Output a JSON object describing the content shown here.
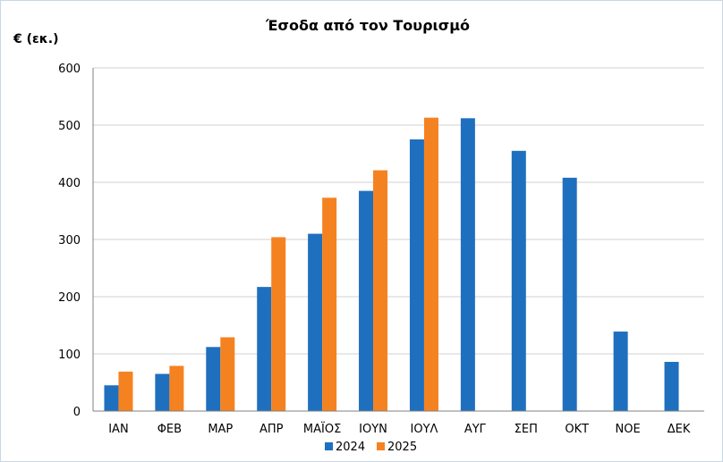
{
  "chart_data": {
    "type": "bar",
    "title": "Έσοδα από τον Τουρισμό",
    "ylabel": "€ (εκ.)",
    "xlabel": "",
    "categories": [
      "ΙΑΝ",
      "ΦΕΒ",
      "ΜΑΡ",
      "ΑΠΡ",
      "ΜΑΪΟΣ",
      "ΙΟΥΝ",
      "ΙΟΥΛ",
      "ΑΥΓ",
      "ΣΕΠ",
      "ΟΚΤ",
      "ΝΟΕ",
      "ΔΕΚ"
    ],
    "series": [
      {
        "name": "2024",
        "color": "#1f6fbf",
        "values": [
          45,
          65,
          112,
          217,
          310,
          385,
          475,
          512,
          455,
          408,
          139,
          86
        ]
      },
      {
        "name": "2025",
        "color": "#f58220",
        "values": [
          69,
          79,
          129,
          304,
          373,
          421,
          513,
          null,
          null,
          null,
          null,
          null
        ]
      }
    ],
    "ylim": [
      0,
      600
    ],
    "yticks": [
      0,
      100,
      200,
      300,
      400,
      500,
      600
    ],
    "grid": true,
    "legend": "bottom-center"
  }
}
